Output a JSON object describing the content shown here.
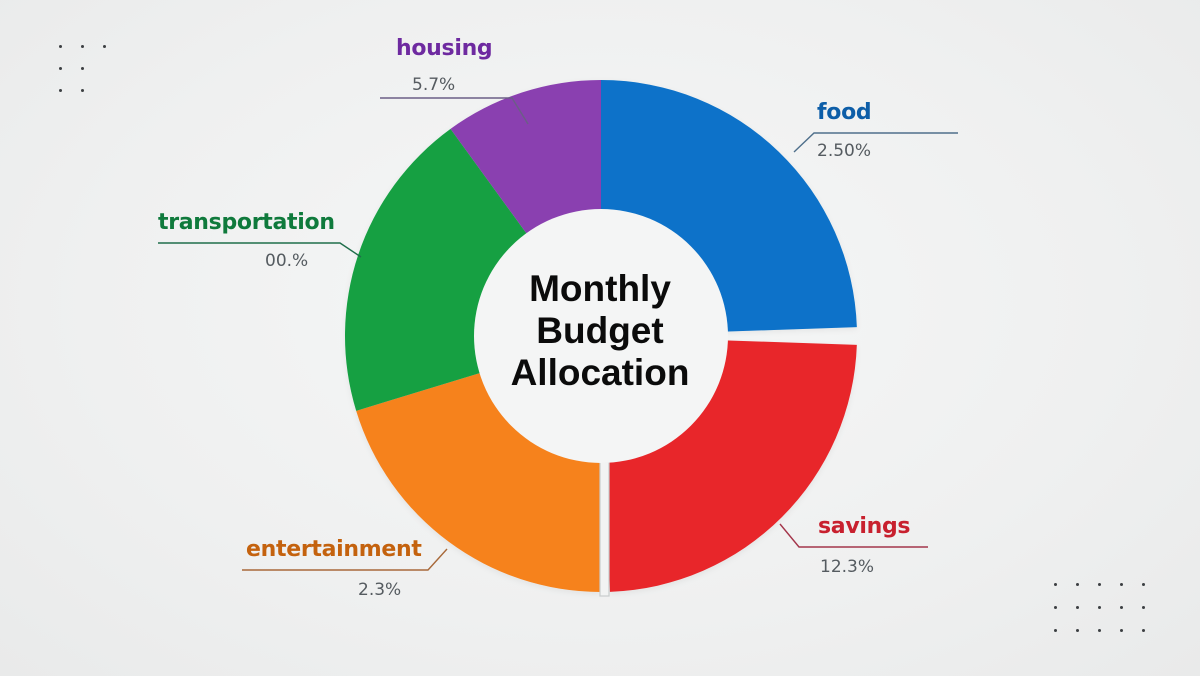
{
  "chart_data": {
    "type": "pie",
    "variant": "donut",
    "title": "Monthly Budget Allocation",
    "categories": [
      "food",
      "savings",
      "entertainment",
      "transportation",
      "housing"
    ],
    "values_as_labeled": [
      "2.50%",
      "12.3%",
      "2.3%",
      "00.%",
      "5.7%"
    ],
    "approx_visual_share_percent": [
      25,
      25,
      20,
      20,
      10
    ],
    "series": [
      {
        "name": "food",
        "label": "2.50%",
        "color": "#0a72c9",
        "start_deg": 0,
        "end_deg": 88
      },
      {
        "name": "savings",
        "label": "12.3%",
        "color": "#e8262a",
        "start_deg": 92,
        "end_deg": 178
      },
      {
        "name": "entertainment",
        "label": "2.3%",
        "color": "#f6821f",
        "start_deg": 180,
        "end_deg": 253
      },
      {
        "name": "transportation",
        "label": "00.%",
        "color": "#13a043",
        "start_deg": 253,
        "end_deg": 324
      },
      {
        "name": "housing",
        "label": "5.7%",
        "color": "#8a3fb0",
        "start_deg": 324,
        "end_deg": 360
      }
    ],
    "legend": "none (leader-line labels)",
    "grid": false
  },
  "labels": {
    "housing": {
      "name": "housing",
      "pct": "5.7%",
      "color": "#6e2aa0"
    },
    "food": {
      "name": "food",
      "pct": "2.50%",
      "color": "#0d5ea8"
    },
    "transportation": {
      "name": "transportation",
      "pct": "00.%",
      "color": "#0f7a3c"
    },
    "entertainment": {
      "name": "entertainment",
      "pct": "2.3%",
      "color": "#c4620e"
    },
    "savings": {
      "name": "savings",
      "pct": "12.3%",
      "color": "#c8202e"
    }
  },
  "center": {
    "line1": "Monthly",
    "line2": "Budget",
    "line3": "Allocation"
  }
}
